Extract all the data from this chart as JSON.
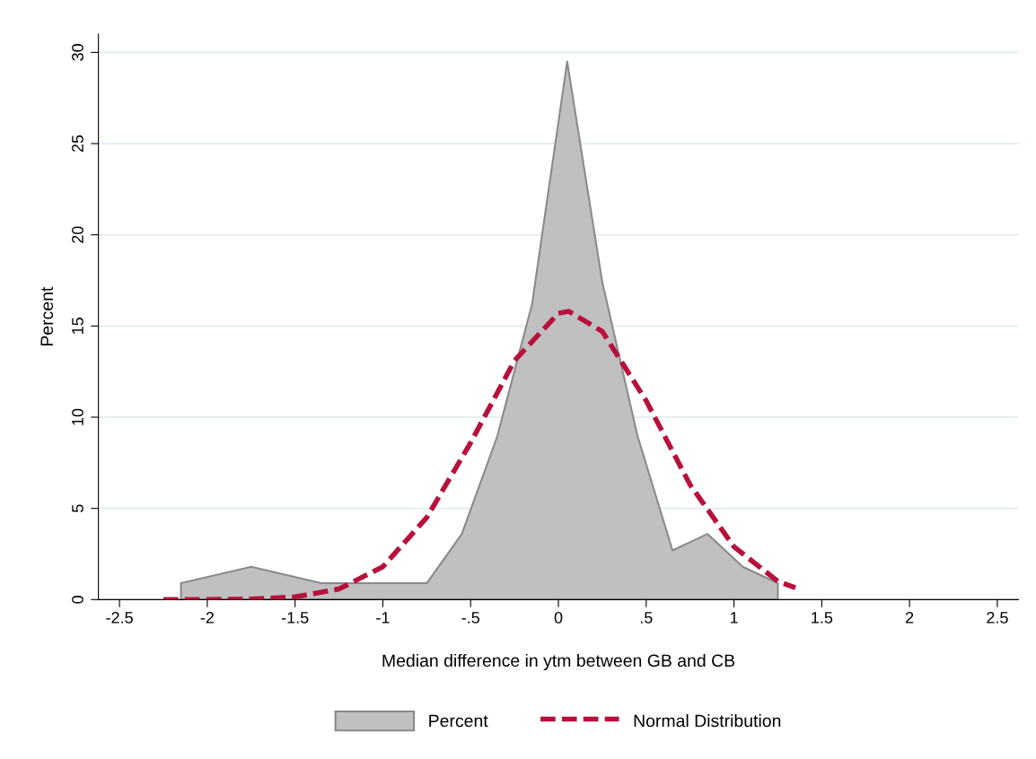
{
  "chart_data": {
    "type": "area",
    "xlabel": "Median difference in ytm between GB and CB",
    "ylabel": "Percent",
    "xlim": [
      -2.62,
      2.62
    ],
    "ylim": [
      0,
      31
    ],
    "xticks": [
      -2.5,
      -2,
      -1.5,
      -1,
      {
        "value": -0.5,
        "label": "-.5"
      },
      0,
      {
        "value": 0.5,
        "label": ".5"
      },
      1,
      1.5,
      2,
      2.5
    ],
    "yticks": [
      0,
      5,
      10,
      15,
      20,
      25,
      30
    ],
    "grid": "y",
    "legend": "bottom",
    "series": [
      {
        "name": "Percent",
        "color": "#c0c0c0",
        "x": [
          -2.15,
          -2.15,
          -1.75,
          -1.35,
          -0.75,
          -0.55,
          -0.35,
          -0.15,
          0.05,
          0.25,
          0.45,
          0.65,
          0.85,
          1.05,
          1.25,
          1.25
        ],
        "values": [
          0,
          0.9,
          1.8,
          0.9,
          0.9,
          3.6,
          8.9,
          16.2,
          29.5,
          17.4,
          9.0,
          2.7,
          3.6,
          1.8,
          0.9,
          0
        ]
      },
      {
        "name": "Normal Distribution",
        "type": "line",
        "color": "#b8103c",
        "line_style": "dashed",
        "marker": "none",
        "x": [
          -2.25,
          -2.0,
          -1.75,
          -1.5,
          -1.25,
          -1.0,
          -0.75,
          -0.5,
          -0.25,
          0.0,
          0.06,
          0.25,
          0.5,
          0.75,
          1.0,
          1.25,
          1.35
        ],
        "values": [
          0.0,
          0.0,
          0.03,
          0.15,
          0.58,
          1.8,
          4.5,
          8.6,
          13.1,
          15.7,
          15.8,
          14.7,
          10.9,
          6.3,
          2.9,
          1.0,
          0.65
        ]
      }
    ]
  }
}
